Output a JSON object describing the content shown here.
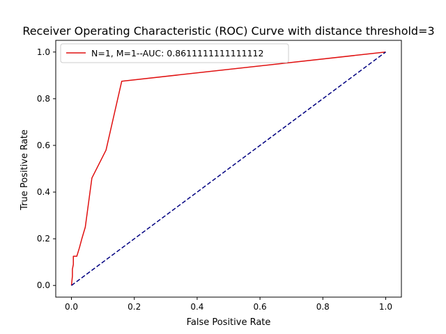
{
  "chart_data": {
    "type": "line",
    "title": "Receiver Operating Characteristic (ROC) Curve with distance threshold=3",
    "xlabel": "False Positive Rate",
    "ylabel": "True Positive Rate",
    "xlim": [
      -0.05,
      1.05
    ],
    "ylim": [
      -0.05,
      1.05
    ],
    "xticks": [
      0.0,
      0.2,
      0.4,
      0.6,
      0.8,
      1.0
    ],
    "yticks": [
      0.0,
      0.2,
      0.4,
      0.6,
      0.8,
      1.0
    ],
    "xtick_labels": [
      "0.0",
      "0.2",
      "0.4",
      "0.6",
      "0.8",
      "1.0"
    ],
    "ytick_labels": [
      "0.0",
      "0.2",
      "0.4",
      "0.6",
      "0.8",
      "1.0"
    ],
    "grid": false,
    "legend_position": "top-left",
    "series": [
      {
        "name": "N=1, M=1--AUC: 0.8611111111111112",
        "color": "#e01010",
        "style": "solid",
        "x": [
          0.0,
          0.003,
          0.003,
          0.006,
          0.006,
          0.017,
          0.025,
          0.033,
          0.044,
          0.065,
          0.11,
          0.16,
          1.0
        ],
        "y": [
          0.0,
          0.04,
          0.07,
          0.09,
          0.125,
          0.125,
          0.16,
          0.2,
          0.25,
          0.46,
          0.58,
          0.875,
          1.0
        ]
      },
      {
        "color": "#000080",
        "style": "dashed",
        "x": [
          0.0,
          1.0
        ],
        "y": [
          0.0,
          1.0
        ]
      }
    ]
  }
}
